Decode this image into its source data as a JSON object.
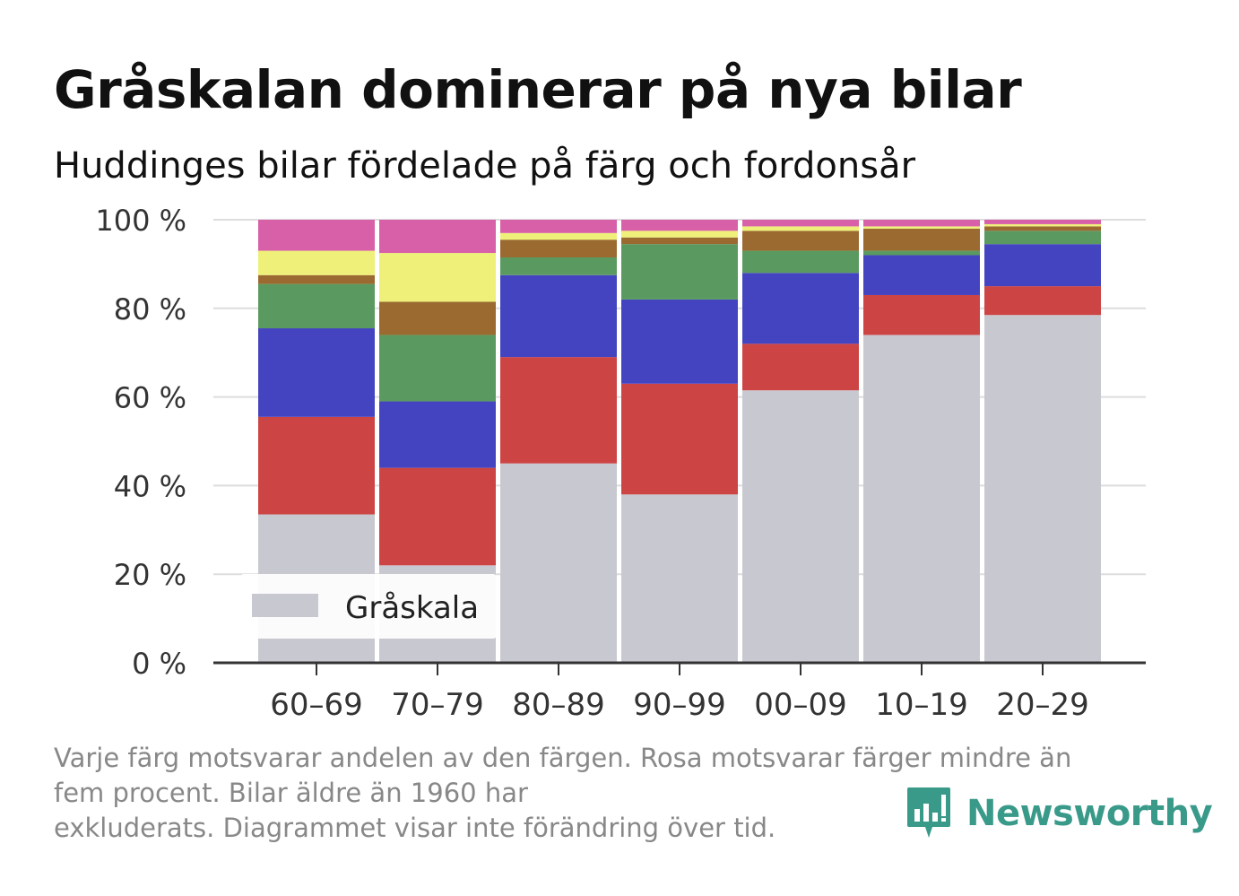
{
  "chart_data": {
    "type": "bar",
    "stacked": true,
    "title": "Gråskalan dominerar på nya bilar",
    "subtitle": "Huddinges bilar fördelade på färg och fordonsår",
    "categories": [
      "60–69",
      "70–79",
      "80–89",
      "90–99",
      "00–09",
      "10–19",
      "20–29"
    ],
    "y_ticks": [
      "0 %",
      "20 %",
      "40 %",
      "60 %",
      "80 %",
      "100 %"
    ],
    "ylim": [
      0,
      100
    ],
    "grid": true,
    "legend_position": "bottom-left",
    "legend_entries": [
      "Gråskala"
    ],
    "series": [
      {
        "name": "Gråskala",
        "color": "#c8c8d0",
        "values": [
          33.5,
          22,
          45,
          38,
          61.5,
          74,
          78.5
        ]
      },
      {
        "color": "#cc4444",
        "values": [
          22,
          22,
          24,
          25,
          10.5,
          9,
          6.5
        ]
      },
      {
        "color": "#4444c0",
        "values": [
          20,
          15,
          18.5,
          19,
          16,
          9,
          9.5
        ]
      },
      {
        "color": "#5a9a60",
        "values": [
          10,
          15,
          4,
          12.5,
          5,
          1,
          3
        ]
      },
      {
        "color": "#9a6a30",
        "values": [
          2,
          7.5,
          4,
          1.5,
          4.5,
          5,
          1
        ]
      },
      {
        "color": "#eef07a",
        "values": [
          5.5,
          11,
          1.5,
          1.5,
          1,
          0.5,
          0.5
        ]
      },
      {
        "color": "#d860a8",
        "values": [
          7,
          7.5,
          3,
          2.5,
          1.5,
          1.5,
          1
        ]
      }
    ]
  },
  "footnote": {
    "line1": "Varje färg motsvarar andelen av den färgen. Rosa motsvarar färger mindre än",
    "line2": "fem procent. Bilar äldre än 1960 har",
    "line3": "exkluderats. Diagrammet visar inte förändring över tid."
  },
  "brand": {
    "name": "Newsworthy",
    "icon": "newsworthy-logo-icon",
    "color": "#3a9a8a"
  }
}
